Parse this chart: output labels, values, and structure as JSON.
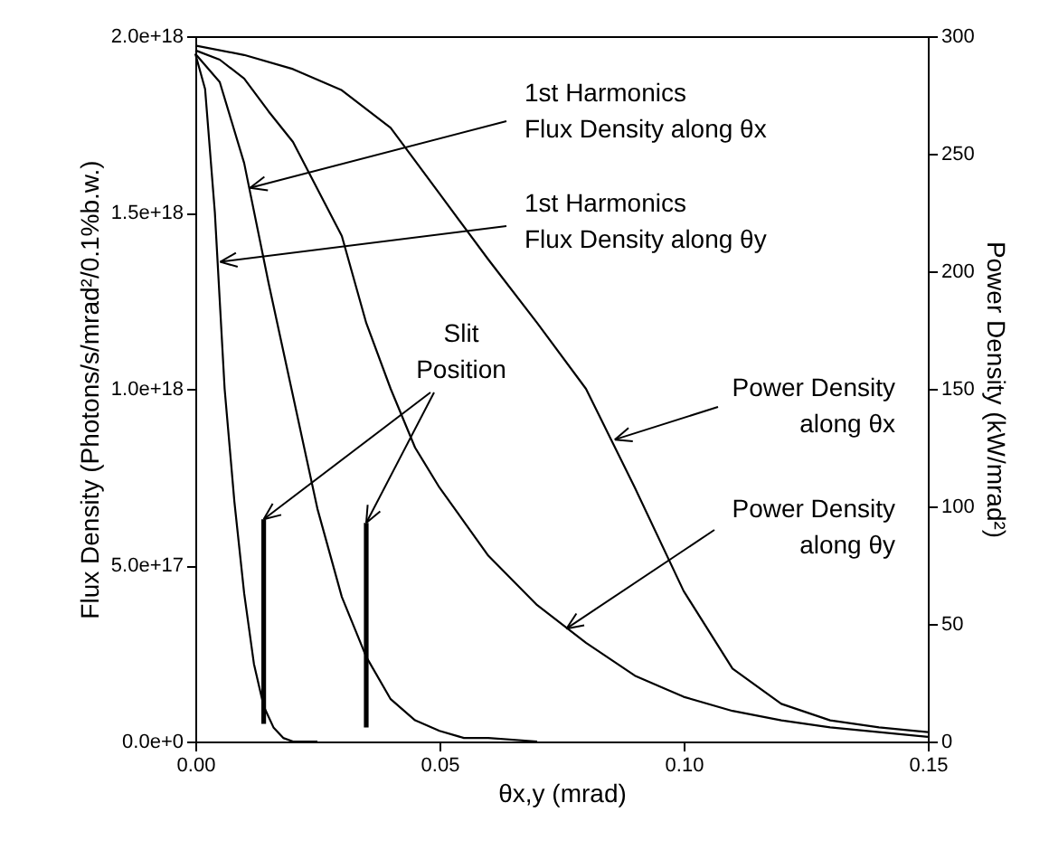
{
  "chart_data": {
    "type": "line",
    "xlabel": "θx,y (mrad)",
    "ylabel": "Flux Density (Photons/s/mrad²/0.1%b.w.)",
    "y2label": "Power Density (kW/mrad²)",
    "xlim": [
      0,
      0.15
    ],
    "xticks": [
      {
        "value": 0,
        "label": "0.00"
      },
      {
        "value": 0.05,
        "label": "0.05"
      },
      {
        "value": 0.1,
        "label": "0.10"
      },
      {
        "value": 0.15,
        "label": "0.15"
      }
    ],
    "ylim": [
      0,
      2e+18
    ],
    "yticks": [
      {
        "value": 0,
        "label": "0.0e+0"
      },
      {
        "value": 5e+17,
        "label": "5.0e+17"
      },
      {
        "value": 1e+18,
        "label": "1.0e+18"
      },
      {
        "value": 1.5e+18,
        "label": "1.5e+18"
      },
      {
        "value": 2e+18,
        "label": "2.0e+18"
      }
    ],
    "y2lim": [
      0,
      300
    ],
    "y2ticks": [
      0,
      50,
      100,
      150,
      200,
      250,
      300
    ],
    "series": [
      {
        "color": "#000000",
        "x": [
          0,
          0.002,
          0.004,
          0.006,
          0.008,
          0.01,
          0.012,
          0.014,
          0.016,
          0.018,
          0.02,
          0.025
        ],
        "values": [
          1.95e+18,
          1.85e+18,
          1.5e+18,
          1e+18,
          6.8e+17,
          4.2e+17,
          2.2e+17,
          1e+17,
          4e+16,
          1e+16,
          0,
          0
        ]
      },
      {
        "color": "#000000",
        "x": [
          0,
          0.005,
          0.01,
          0.015,
          0.02,
          0.025,
          0.03,
          0.035,
          0.04,
          0.045,
          0.05,
          0.055,
          0.06,
          0.07
        ],
        "values": [
          1.95e+18,
          1.87e+18,
          1.64e+18,
          1.3e+18,
          9.8e+17,
          6.6e+17,
          4.1e+17,
          2.4e+17,
          1.2e+17,
          6e+16,
          3e+16,
          1e+16,
          1e+16,
          0
        ]
      },
      {
        "color": "#000000",
        "axis": "y2",
        "x": [
          0,
          0.005,
          0.01,
          0.015,
          0.02,
          0.025,
          0.03,
          0.035,
          0.04,
          0.045,
          0.05,
          0.06,
          0.07,
          0.08,
          0.09,
          0.1,
          0.11,
          0.12,
          0.13,
          0.14,
          0.15
        ],
        "values": [
          294,
          290,
          282,
          268,
          255,
          235,
          215,
          178,
          150,
          125,
          108,
          79,
          58,
          42,
          28,
          19,
          13,
          9,
          6,
          4,
          2
        ]
      },
      {
        "color": "#000000",
        "axis": "y2",
        "x": [
          0,
          0.01,
          0.02,
          0.03,
          0.04,
          0.05,
          0.06,
          0.07,
          0.08,
          0.09,
          0.1,
          0.11,
          0.12,
          0.13,
          0.14,
          0.15
        ],
        "values": [
          296,
          292,
          286,
          277,
          261,
          233,
          205,
          178,
          150,
          108,
          64,
          31,
          16,
          9,
          6,
          4
        ]
      },
      {
        "color": "#000000",
        "x": [
          0.014,
          0.014
        ],
        "values": [
          5e+16,
          6.3e+17
        ]
      },
      {
        "color": "#000000",
        "x": [
          0.035,
          0.035
        ],
        "values": [
          4e+16,
          6.2e+17
        ]
      }
    ],
    "annotations": [
      {
        "text": "1st Harmonics\nFlux Density along θx",
        "x": 0.0112,
        "y": 1.57e+18
      },
      {
        "text": "1st Harmonics\nFlux Density along θy",
        "x": 0.0051,
        "y": 1.36e+18
      },
      {
        "text": "Slit\nPosition",
        "x": 0.014,
        "y": 6.3e+17
      },
      {
        "text": "Power Density\nalong θx",
        "x": 0.0859,
        "y": 8.56e+17
      },
      {
        "text": "Power Density\nalong θy",
        "x": 0.076,
        "y": 3.2e+17
      }
    ]
  }
}
